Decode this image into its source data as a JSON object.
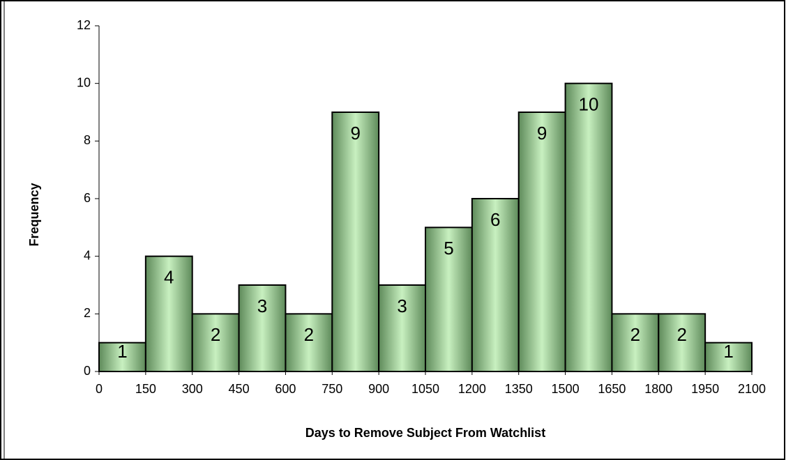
{
  "chart_data": {
    "type": "histogram",
    "xlabel": "Days to Remove Subject From Watchlist",
    "ylabel": "Frequency",
    "bins": [
      0,
      150,
      300,
      450,
      600,
      750,
      900,
      1050,
      1200,
      1350,
      1500,
      1650,
      1800,
      1950,
      2100
    ],
    "values": [
      1,
      4,
      2,
      3,
      2,
      9,
      3,
      5,
      6,
      9,
      10,
      2,
      2,
      1
    ],
    "xlim": [
      0,
      2100
    ],
    "xticks": [
      0,
      150,
      300,
      450,
      600,
      750,
      900,
      1050,
      1200,
      1350,
      1500,
      1650,
      1800,
      1950,
      2100
    ],
    "ylim": [
      0,
      12
    ],
    "yticks": [
      0,
      2,
      4,
      6,
      8,
      10,
      12
    ],
    "color": "#c8f0c0"
  }
}
